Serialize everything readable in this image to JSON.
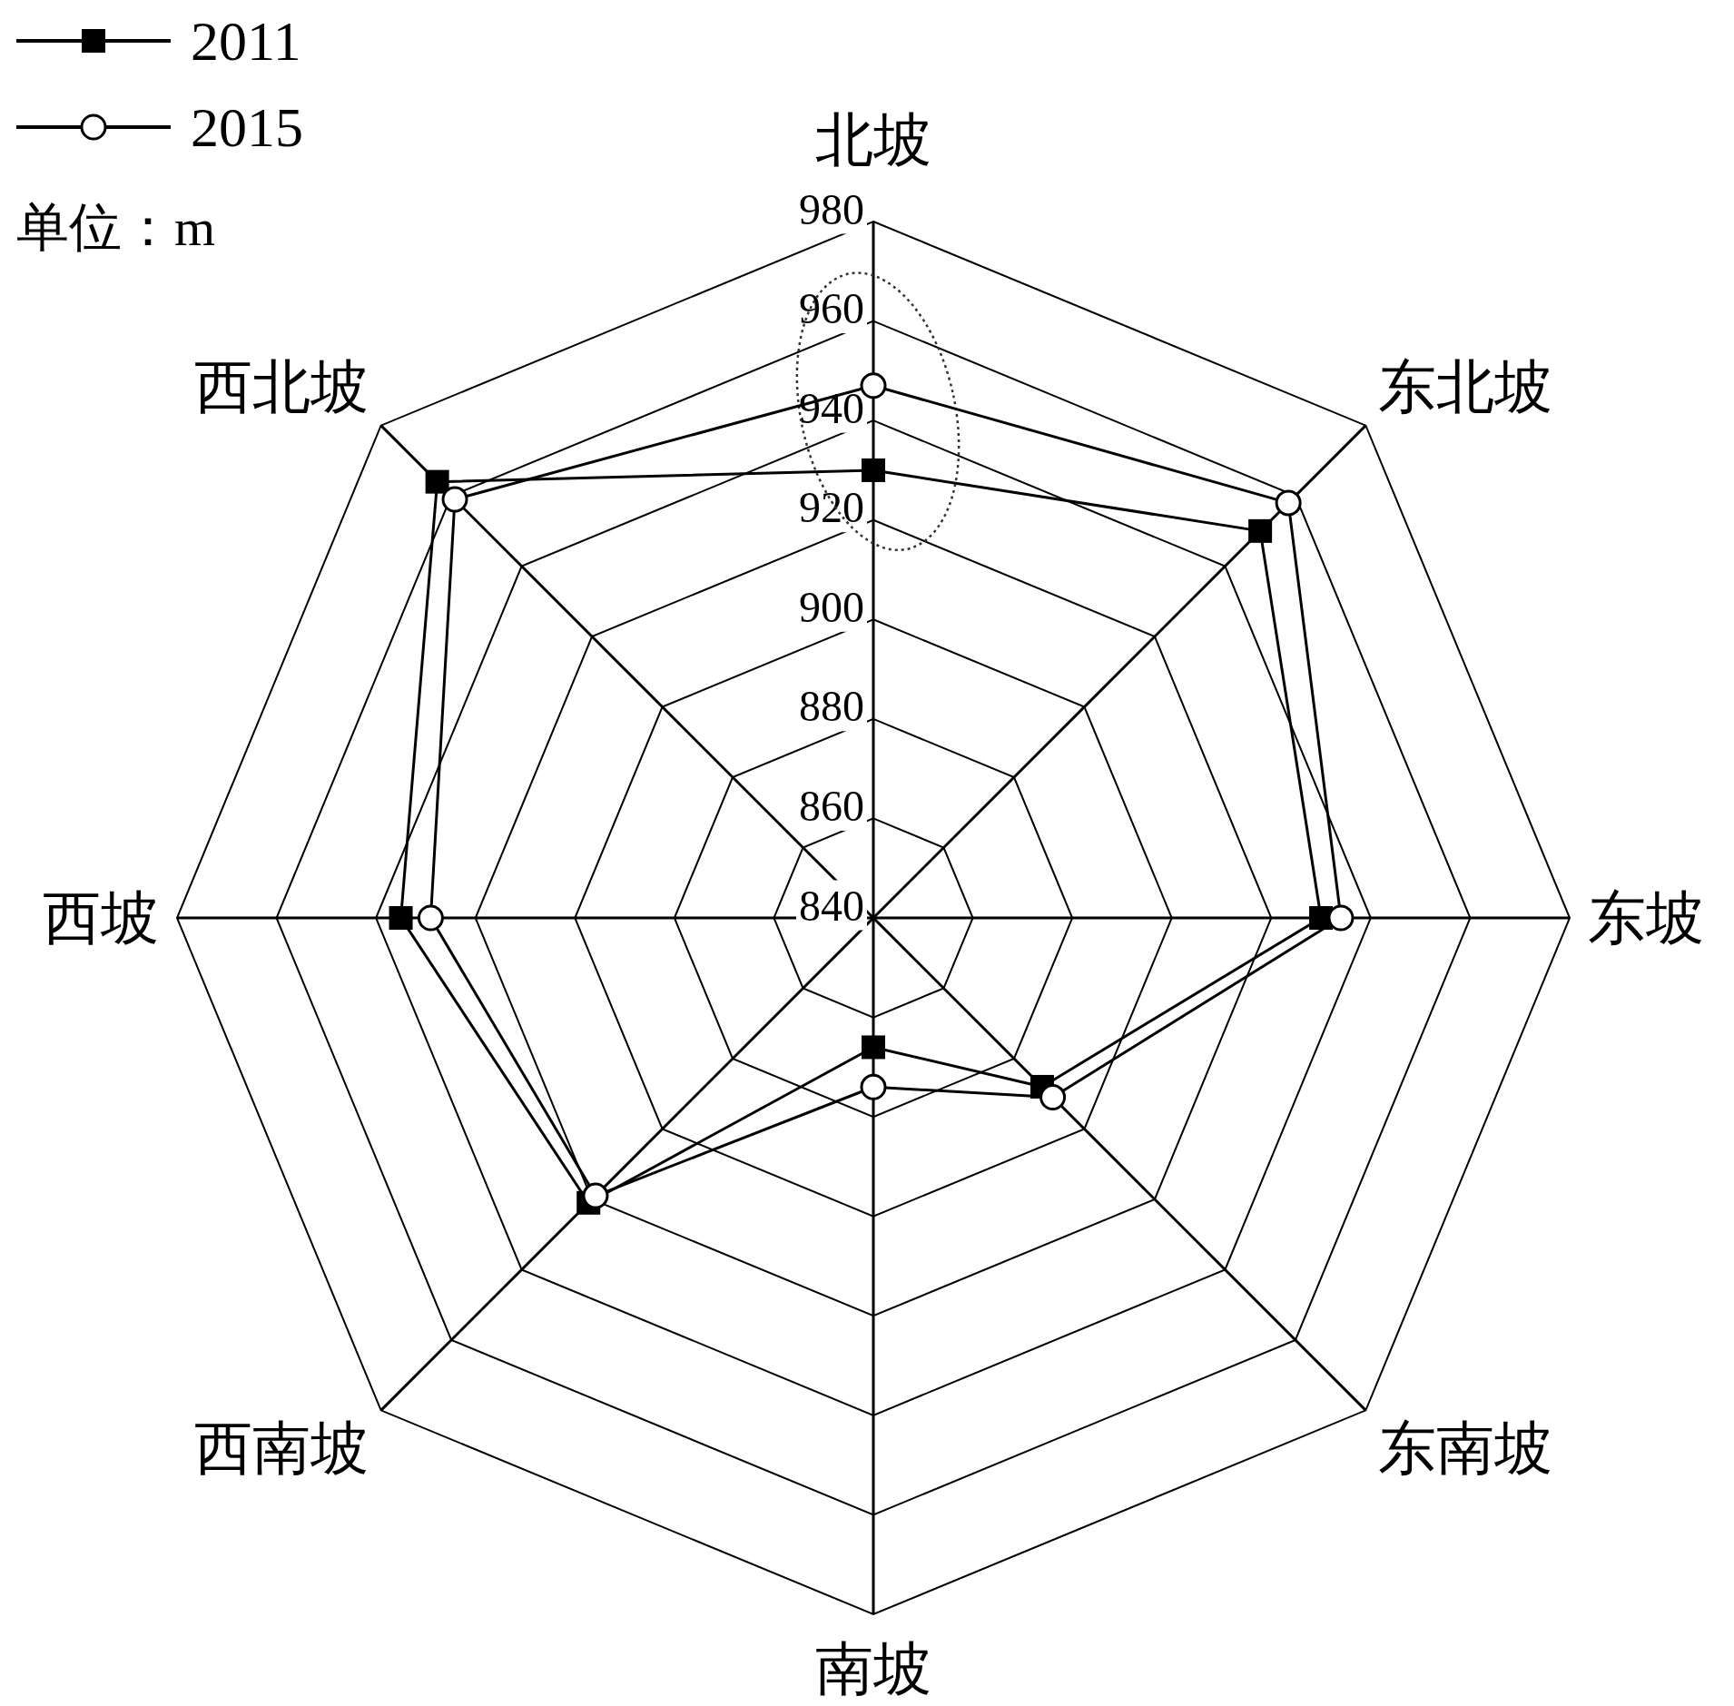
{
  "chart_data": {
    "type": "radar",
    "categories": [
      "北坡",
      "东北坡",
      "东坡",
      "东南坡",
      "南坡",
      "西南坡",
      "西坡",
      "西北坡"
    ],
    "series": [
      {
        "name": "2011",
        "color": "#000000",
        "marker": "square",
        "values": [
          930,
          950,
          930,
          888,
          866,
          921,
          935,
          964
        ]
      },
      {
        "name": "2015",
        "color": "#000000",
        "marker": "circle",
        "values": [
          947,
          958,
          934,
          891,
          874,
          919,
          929,
          959
        ]
      }
    ],
    "ylim": [
      840,
      980
    ],
    "yticks": [
      840,
      860,
      880,
      900,
      920,
      940,
      960,
      980
    ],
    "grid": true,
    "legend": "top left",
    "annotations": [
      "单位：m"
    ]
  }
}
